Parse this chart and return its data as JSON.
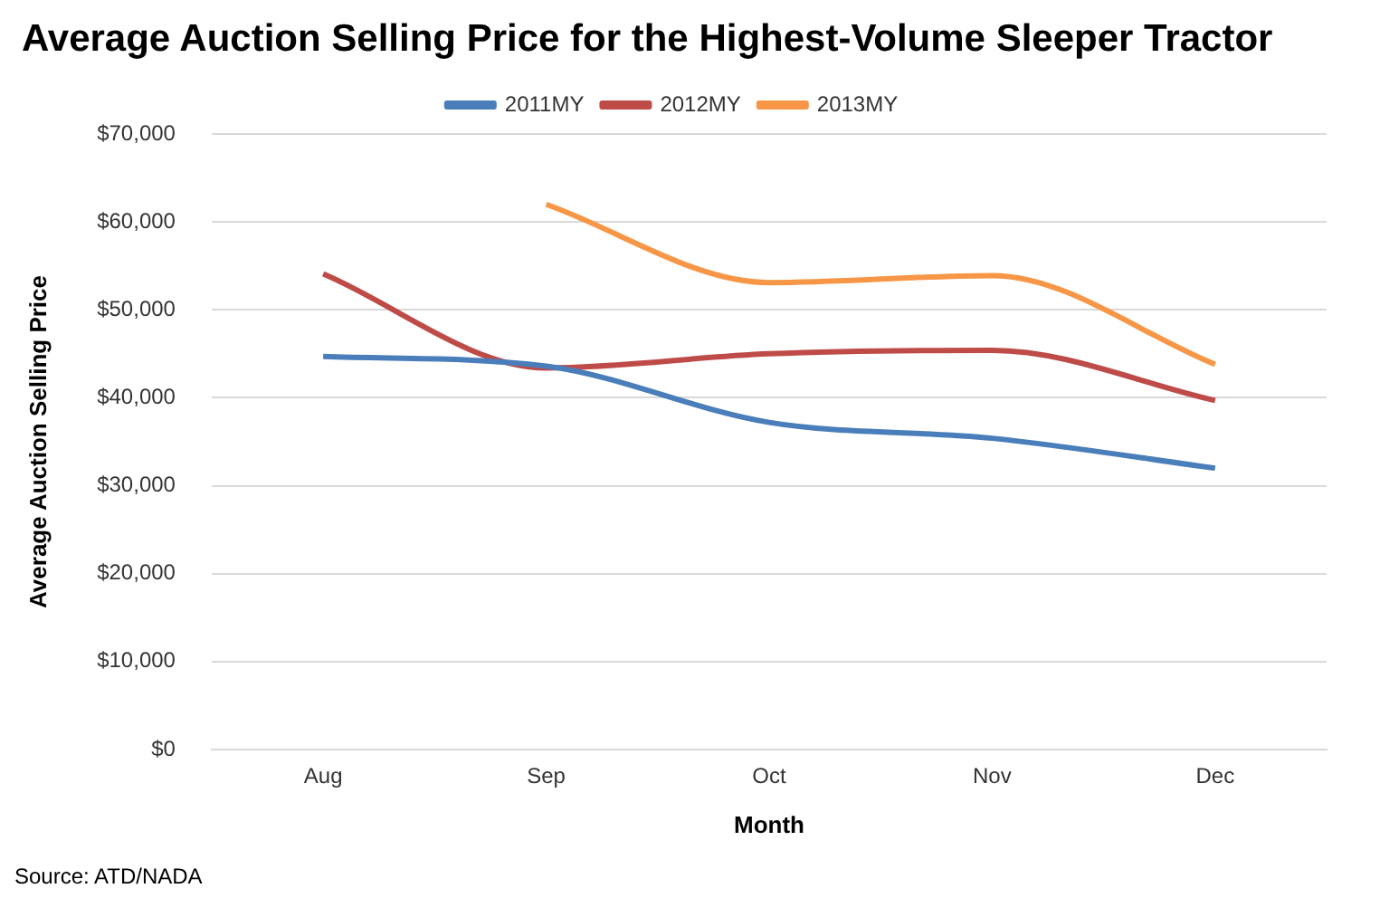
{
  "chart_data": {
    "type": "line",
    "title": "Average Auction Selling Price for the Highest-Volume Sleeper Tractor",
    "xlabel": "Month",
    "ylabel": "Average Auction Selling Price",
    "categories": [
      "Aug",
      "Sep",
      "Oct",
      "Nov",
      "Dec"
    ],
    "series": [
      {
        "name": "2011MY",
        "color": "#4a7ebb",
        "values": [
          44700,
          43600,
          37200,
          35400,
          32000
        ]
      },
      {
        "name": "2012MY",
        "color": "#be4b48",
        "values": [
          54100,
          43400,
          45000,
          45400,
          39700
        ]
      },
      {
        "name": "2013MY",
        "color": "#f79646",
        "values": [
          null,
          62000,
          53100,
          53900,
          43800
        ]
      }
    ],
    "ylim": [
      0,
      70000
    ],
    "yticks": [
      {
        "value": 0,
        "label": "$0"
      },
      {
        "value": 10000,
        "label": "$10,000"
      },
      {
        "value": 20000,
        "label": "$20,000"
      },
      {
        "value": 30000,
        "label": "$30,000"
      },
      {
        "value": 40000,
        "label": "$40,000"
      },
      {
        "value": 50000,
        "label": "$50,000"
      },
      {
        "value": 60000,
        "label": "$60,000"
      },
      {
        "value": 70000,
        "label": "$70,000"
      }
    ],
    "grid": "y",
    "legend": "top",
    "marker": "none",
    "line_style": "solid",
    "annotations": [
      "Source: ATD/NADA"
    ]
  }
}
